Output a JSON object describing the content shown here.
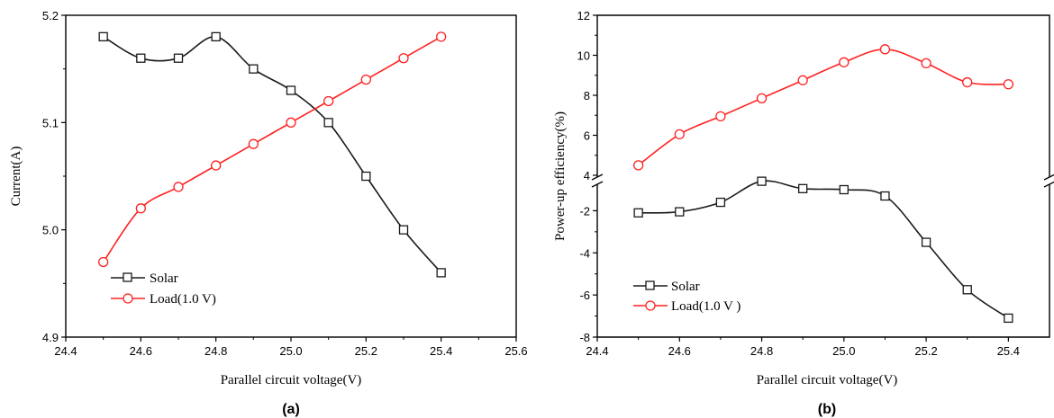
{
  "chart_data": [
    {
      "type": "line",
      "panel_label": "(a)",
      "xlabel": "Parallel circuit voltage(V)",
      "ylabel": "Current(A)",
      "xlim": [
        24.4,
        25.6
      ],
      "ylim": [
        4.9,
        5.2
      ],
      "xticks": [
        "24.4",
        "24.6",
        "24.8",
        "25.0",
        "25.2",
        "25.4",
        "25.6"
      ],
      "yticks": [
        "4.9",
        "5.0",
        "5.1",
        "5.2"
      ],
      "grid": false,
      "legend_position": "bottom-left",
      "series": [
        {
          "name": "Solar",
          "marker": "square",
          "color": "#1a1a1a",
          "x": [
            24.5,
            24.6,
            24.7,
            24.8,
            24.9,
            25.0,
            25.1,
            25.2,
            25.3,
            25.4
          ],
          "y": [
            5.18,
            5.16,
            5.16,
            5.18,
            5.15,
            5.13,
            5.1,
            5.05,
            5.0,
            4.96
          ]
        },
        {
          "name": "Load(1.0 V)",
          "marker": "circle",
          "color": "#ff2020",
          "x": [
            24.5,
            24.6,
            24.7,
            24.8,
            24.9,
            25.0,
            25.1,
            25.2,
            25.3,
            25.4
          ],
          "y": [
            4.97,
            5.02,
            5.04,
            5.06,
            5.08,
            5.1,
            5.12,
            5.14,
            5.16,
            5.18
          ]
        }
      ]
    },
    {
      "type": "line",
      "panel_label": "(b)",
      "xlabel": "Parallel circuit voltage(V)",
      "ylabel": "Power-up efficiency(%)",
      "xlim": [
        24.4,
        25.5
      ],
      "ylim": [
        -8,
        12
      ],
      "axis_break": [
        -1,
        4
      ],
      "xticks": [
        "24.4",
        "24.6",
        "24.8",
        "25.0",
        "25.2",
        "25.4"
      ],
      "yticks": [
        "-8",
        "-6",
        "-4",
        "-2",
        "4",
        "6",
        "8",
        "10",
        "12"
      ],
      "grid": false,
      "legend_position": "bottom-left",
      "series": [
        {
          "name": "Solar",
          "marker": "square",
          "color": "#1a1a1a",
          "x": [
            24.5,
            24.6,
            24.7,
            24.8,
            24.9,
            25.0,
            25.1,
            25.2,
            25.3,
            25.4
          ],
          "y": [
            -2.1,
            -2.05,
            -1.6,
            -0.6,
            -0.95,
            -1.0,
            -1.3,
            -3.5,
            -5.75,
            -7.1
          ]
        },
        {
          "name": "Load(1.0 V )",
          "marker": "circle",
          "color": "#ff2020",
          "x": [
            24.5,
            24.6,
            24.7,
            24.8,
            24.9,
            25.0,
            25.1,
            25.2,
            25.3,
            25.4
          ],
          "y": [
            4.5,
            6.05,
            6.95,
            7.85,
            8.75,
            9.65,
            10.3,
            9.6,
            8.65,
            8.55
          ]
        }
      ]
    }
  ]
}
